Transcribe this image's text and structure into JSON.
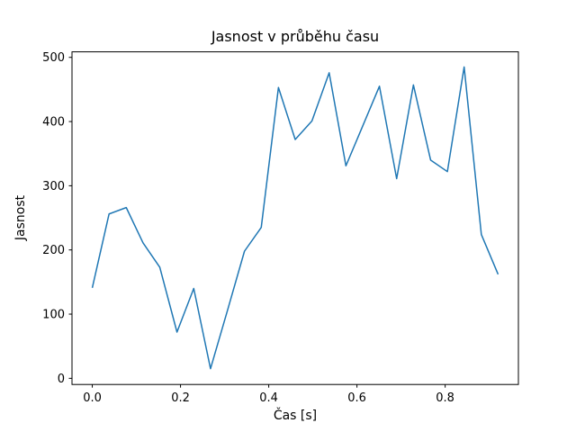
{
  "window": {
    "background_color": "#ffffff"
  },
  "chart_data": {
    "type": "line",
    "title": "Jasnost v průběhu času",
    "xlabel": "Čas [s]",
    "ylabel": "Jasnost",
    "x": [
      0.0,
      0.038,
      0.077,
      0.115,
      0.153,
      0.192,
      0.23,
      0.268,
      0.307,
      0.345,
      0.383,
      0.422,
      0.46,
      0.498,
      0.537,
      0.575,
      0.613,
      0.651,
      0.69,
      0.728,
      0.767,
      0.805,
      0.843,
      0.882,
      0.92
    ],
    "y": [
      141,
      256,
      266,
      211,
      173,
      72,
      140,
      15,
      107,
      198,
      235,
      453,
      372,
      401,
      476,
      331,
      393,
      455,
      311,
      457,
      340,
      322,
      485,
      224,
      162
    ],
    "x_ticks": [
      0.0,
      0.2,
      0.4,
      0.6,
      0.8
    ],
    "x_tick_labels": [
      "0.0",
      "0.2",
      "0.4",
      "0.6",
      "0.8"
    ],
    "y_ticks": [
      0,
      100,
      200,
      300,
      400,
      500
    ],
    "y_tick_labels": [
      "0",
      "100",
      "200",
      "300",
      "400",
      "500"
    ],
    "xlim": [
      -0.046,
      0.966
    ],
    "ylim": [
      -9.6,
      508.6
    ],
    "grid": false,
    "legend": "none",
    "line_color": "#1f77b4",
    "axes_color": "#000000"
  }
}
